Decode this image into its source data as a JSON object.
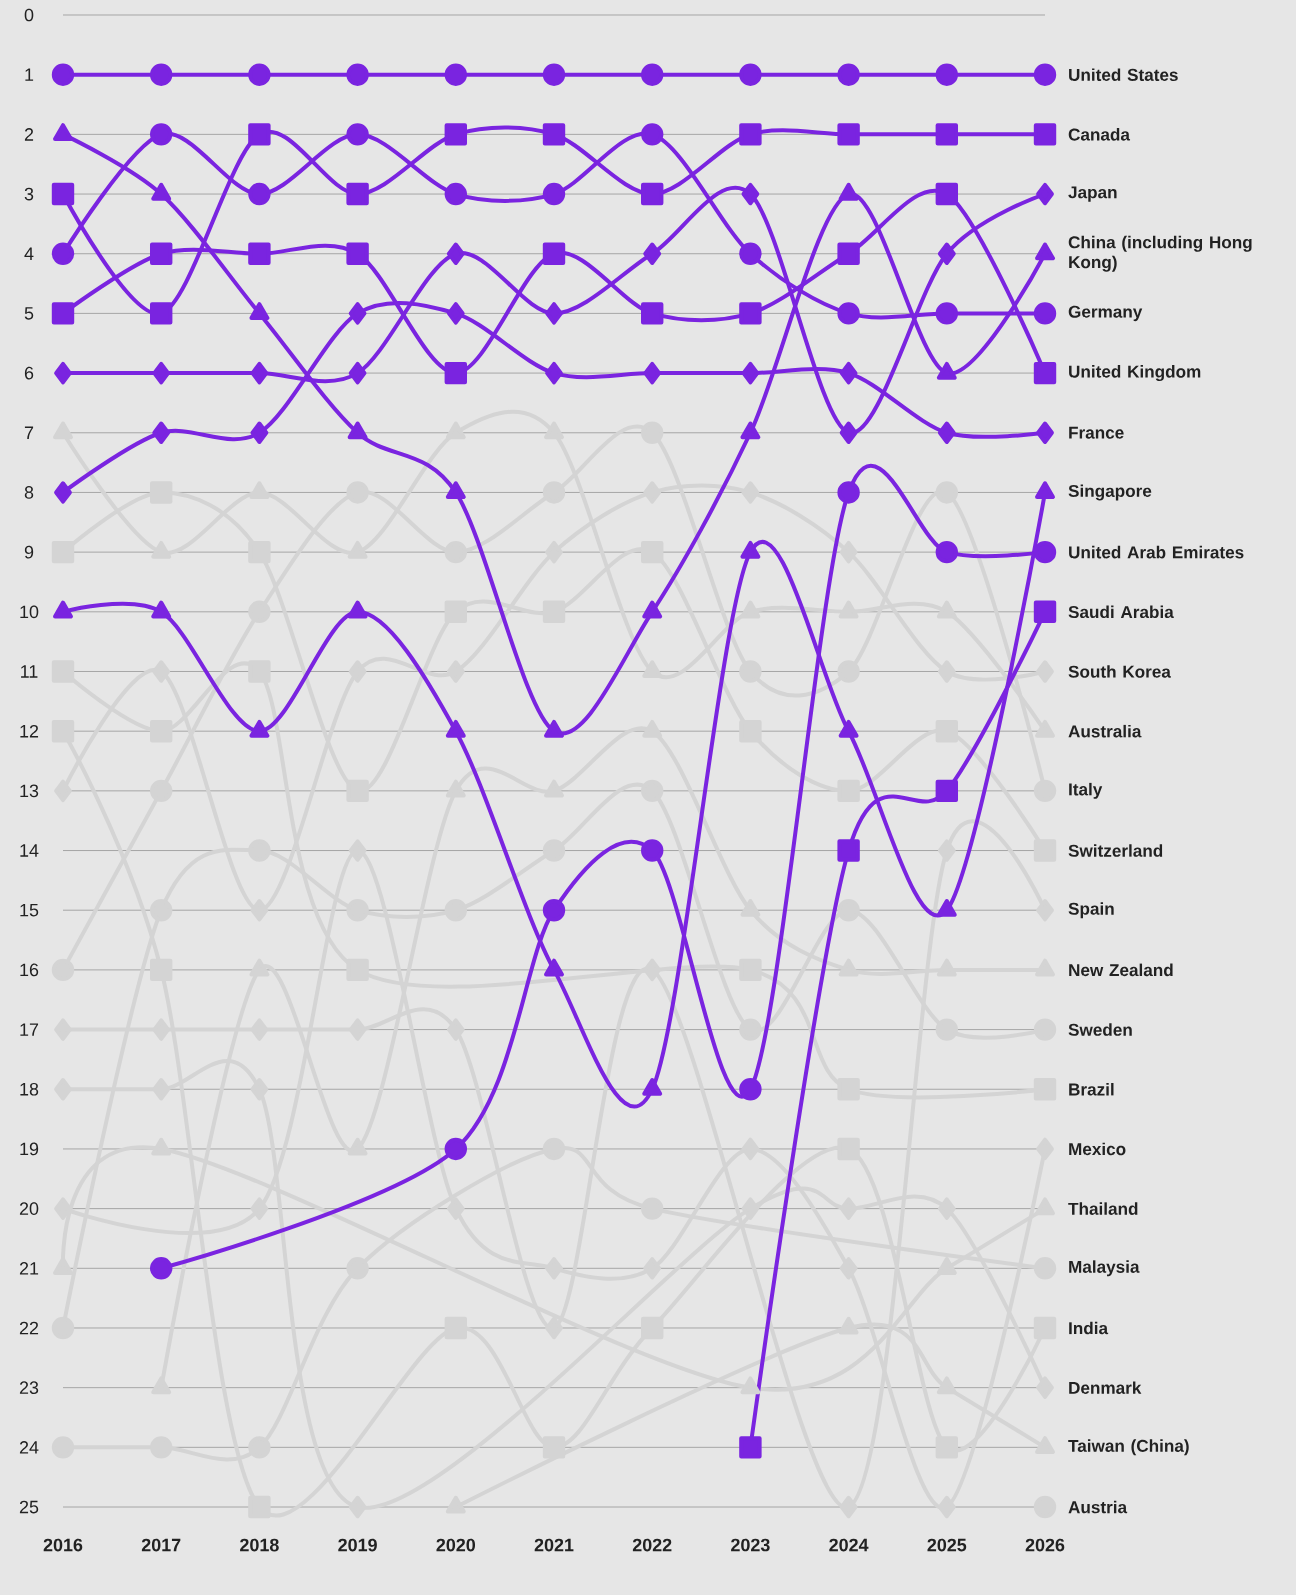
{
  "chart_data": {
    "type": "line",
    "x": [
      2016,
      2017,
      2018,
      2019,
      2020,
      2021,
      2022,
      2023,
      2024,
      2025,
      2026
    ],
    "xlim": [
      2016,
      2026
    ],
    "xticks": [
      2016,
      2017,
      2018,
      2019,
      2020,
      2021,
      2022,
      2023,
      2024,
      2025,
      2026
    ],
    "ylim": [
      25,
      0
    ],
    "yticks": [
      0,
      1,
      2,
      3,
      4,
      5,
      6,
      7,
      8,
      9,
      10,
      11,
      12,
      13,
      14,
      15,
      16,
      17,
      18,
      19,
      20,
      21,
      22,
      23,
      24,
      25
    ],
    "grid": "y",
    "series": [
      {
        "name": "United States",
        "color": "#7a24e0",
        "marker": "circle",
        "values": [
          1,
          1,
          1,
          1,
          1,
          1,
          1,
          1,
          1,
          1,
          1
        ]
      },
      {
        "name": "Canada",
        "color": "#7a24e0",
        "marker": "square",
        "values": [
          3,
          5,
          2,
          3,
          2,
          2,
          3,
          2,
          2,
          2,
          2
        ]
      },
      {
        "name": "Japan",
        "color": "#7a24e0",
        "marker": "diamond",
        "values": [
          6,
          6,
          6,
          6,
          4,
          5,
          4,
          3,
          7,
          4,
          3
        ]
      },
      {
        "name": "China (including Hong Kong)",
        "color": "#7a24e0",
        "marker": "triangle",
        "values": [
          2,
          3,
          5,
          7,
          8,
          12,
          10,
          7,
          3,
          6,
          4
        ]
      },
      {
        "name": "Germany",
        "color": "#7a24e0",
        "marker": "circle",
        "values": [
          4,
          2,
          3,
          2,
          3,
          3,
          2,
          4,
          5,
          5,
          5
        ]
      },
      {
        "name": "United Kingdom",
        "color": "#7a24e0",
        "marker": "square",
        "values": [
          5,
          4,
          4,
          4,
          6,
          4,
          5,
          5,
          4,
          3,
          6
        ]
      },
      {
        "name": "France",
        "color": "#7a24e0",
        "marker": "diamond",
        "values": [
          8,
          7,
          7,
          5,
          5,
          6,
          6,
          6,
          6,
          7,
          7
        ]
      },
      {
        "name": "Singapore",
        "color": "#7a24e0",
        "marker": "triangle",
        "values": [
          10,
          10,
          12,
          10,
          12,
          16,
          18,
          9,
          12,
          15,
          8
        ]
      },
      {
        "name": "United Arab Emirates",
        "color": "#7a24e0",
        "marker": "circle",
        "values": [
          null,
          21,
          null,
          null,
          19,
          15,
          14,
          18,
          8,
          9,
          9
        ]
      },
      {
        "name": "Saudi Arabia",
        "color": "#7a24e0",
        "marker": "square",
        "values": [
          null,
          null,
          null,
          null,
          null,
          null,
          null,
          24,
          14,
          13,
          10
        ]
      },
      {
        "name": "South Korea",
        "color": "#d4d4d4",
        "marker": "diamond",
        "values": [
          13,
          11,
          15,
          11,
          11,
          9,
          8,
          8,
          9,
          11,
          11
        ]
      },
      {
        "name": "Australia",
        "color": "#d4d4d4",
        "marker": "triangle",
        "values": [
          7,
          9,
          8,
          9,
          7,
          7,
          11,
          10,
          10,
          10,
          12
        ]
      },
      {
        "name": "Italy",
        "color": "#d4d4d4",
        "marker": "circle",
        "values": [
          16,
          13,
          10,
          8,
          9,
          8,
          7,
          11,
          11,
          8,
          13
        ]
      },
      {
        "name": "Switzerland",
        "color": "#d4d4d4",
        "marker": "square",
        "values": [
          9,
          8,
          9,
          13,
          10,
          10,
          9,
          12,
          13,
          12,
          14
        ]
      },
      {
        "name": "Spain",
        "color": "#d4d4d4",
        "marker": "diamond",
        "values": [
          17,
          17,
          17,
          17,
          17,
          22,
          16,
          null,
          25,
          14,
          15
        ]
      },
      {
        "name": "New Zealand",
        "color": "#d4d4d4",
        "marker": "triangle",
        "values": [
          null,
          23,
          16,
          19,
          13,
          13,
          12,
          15,
          16,
          16,
          16
        ]
      },
      {
        "name": "Sweden",
        "color": "#d4d4d4",
        "marker": "circle",
        "values": [
          22,
          15,
          14,
          15,
          15,
          14,
          13,
          17,
          15,
          17,
          17
        ]
      },
      {
        "name": "Brazil",
        "color": "#d4d4d4",
        "marker": "square",
        "values": [
          11,
          12,
          11,
          16,
          null,
          null,
          null,
          16,
          18,
          null,
          18
        ]
      },
      {
        "name": "Mexico",
        "color": "#d4d4d4",
        "marker": "diamond",
        "values": [
          20,
          null,
          20,
          14,
          20,
          21,
          21,
          19,
          21,
          25,
          19
        ]
      },
      {
        "name": "Thailand",
        "color": "#d4d4d4",
        "marker": "triangle",
        "values": [
          21,
          19,
          null,
          null,
          null,
          null,
          null,
          23,
          null,
          21,
          20
        ]
      },
      {
        "name": "Malaysia",
        "color": "#d4d4d4",
        "marker": "circle",
        "values": [
          24,
          24,
          24,
          21,
          null,
          19,
          20,
          null,
          null,
          null,
          21
        ]
      },
      {
        "name": "India",
        "color": "#d4d4d4",
        "marker": "square",
        "values": [
          12,
          16,
          25,
          null,
          22,
          24,
          22,
          null,
          19,
          24,
          22
        ]
      },
      {
        "name": "Denmark",
        "color": "#d4d4d4",
        "marker": "diamond",
        "values": [
          18,
          18,
          18,
          25,
          null,
          null,
          null,
          20,
          20,
          20,
          23
        ]
      },
      {
        "name": "Taiwan (China)",
        "color": "#d4d4d4",
        "marker": "triangle",
        "values": [
          null,
          null,
          null,
          null,
          25,
          null,
          null,
          null,
          22,
          23,
          24
        ]
      },
      {
        "name": "Austria",
        "color": "#d4d4d4",
        "marker": "circle",
        "values": [
          null,
          null,
          null,
          null,
          null,
          null,
          null,
          null,
          null,
          null,
          25
        ]
      }
    ]
  }
}
